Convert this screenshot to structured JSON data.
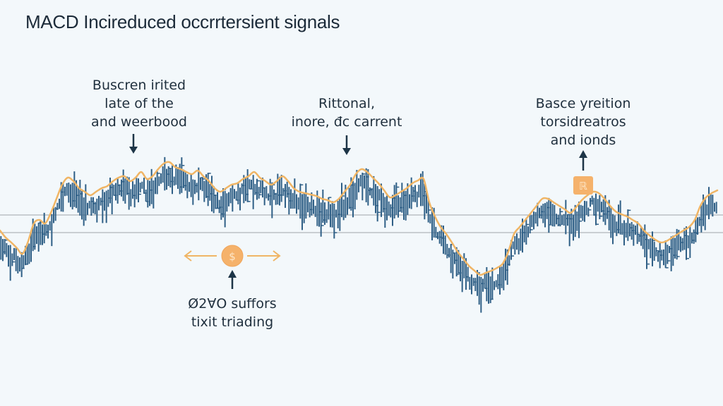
{
  "title": "MACD Incireduced occrrtersient signals",
  "colors": {
    "background": "#f3f8fb",
    "bars": "#2f5f86",
    "curve": "#f0b565",
    "arrow": "#1d3547",
    "marker": "#f5b26b",
    "baseline": "#8b8f94"
  },
  "annotations": [
    {
      "id": "a1",
      "lines": [
        "Buscren irited",
        "late of the",
        "and weerbood"
      ],
      "arrow": "down"
    },
    {
      "id": "a2",
      "lines": [
        "Rittonal,",
        "inore, đc carrent"
      ],
      "arrow": "down"
    },
    {
      "id": "a3",
      "lines": [
        "Basce yreition",
        "torsidreatros",
        "and ionds"
      ],
      "arrow": "up"
    },
    {
      "id": "a4",
      "lines": [
        "Ø2∀O suffors",
        "tixit triading"
      ],
      "arrow": "up"
    }
  ],
  "icons": {
    "coin": "coin-icon",
    "square_marker": "square-marker-icon",
    "left_arrow": "left-arrow-icon",
    "right_arrow": "right-arrow-icon"
  },
  "coin_glyph": "$",
  "marker_glyph": "ℝ",
  "chart_data": {
    "type": "line",
    "description_of_marks": "vertical price bars with an overlaid smoothed curve and two horizontal reference lines",
    "x": [
      0,
      8,
      16,
      24,
      32,
      40,
      48,
      56,
      64,
      72,
      80,
      88,
      96,
      104,
      112,
      120,
      128,
      136,
      144,
      152,
      160,
      168,
      176,
      184,
      192,
      200,
      208,
      216,
      224,
      232,
      240,
      248,
      256,
      264,
      272,
      280,
      288,
      296,
      304,
      312,
      320,
      328,
      336,
      344,
      352,
      360,
      368,
      376,
      384,
      392,
      400,
      408,
      416,
      424,
      432,
      440,
      448,
      456,
      464,
      472,
      480,
      488,
      496,
      504,
      512,
      520,
      528,
      536,
      544,
      552,
      560,
      568,
      576,
      584,
      592,
      600,
      608,
      616,
      624,
      632,
      640,
      648,
      656,
      664,
      672,
      680,
      688,
      696,
      704,
      712,
      720,
      728,
      736,
      744,
      752,
      760,
      768,
      776,
      784,
      792,
      800,
      808,
      816,
      824,
      832,
      840,
      848,
      856,
      864,
      872,
      880,
      888,
      896,
      904,
      912,
      920,
      928,
      936,
      944,
      952,
      960,
      968,
      976,
      984,
      992,
      1000,
      1008,
      1016
    ],
    "series": [
      {
        "values": [
          345,
          355,
          362,
          370,
          378,
          360,
          335,
          330,
          335,
          320,
          300,
          280,
          270,
          275,
          285,
          290,
          295,
          290,
          285,
          282,
          275,
          270,
          268,
          275,
          270,
          262,
          272,
          268,
          258,
          250,
          248,
          255,
          258,
          262,
          265,
          260,
          268,
          275,
          285,
          290,
          285,
          280,
          278,
          272,
          268,
          262,
          270,
          275,
          280,
          275,
          268,
          275,
          285,
          290,
          292,
          294,
          296,
          300,
          302,
          305,
          300,
          290,
          280,
          265,
          258,
          262,
          270,
          278,
          288,
          298,
          295,
          290,
          285,
          278,
          274,
          272,
          305,
          325,
          340,
          350,
          362,
          375,
          385,
          395,
          402,
          408,
          405,
          402,
          398,
          392,
          375,
          350,
          340,
          330,
          320,
          310,
          300,
          300,
          305,
          310,
          315,
          320,
          312,
          302,
          295,
          290,
          292,
          300,
          310,
          318,
          322,
          325,
          330,
          335,
          345,
          352,
          358,
          362,
          360,
          355,
          350,
          345,
          340,
          330,
          310,
          298,
          292,
          288
        ]
      }
    ],
    "reference_lines": [
      305,
      330
    ],
    "ylim": [
      200,
      450
    ],
    "xlabel": "",
    "ylabel": "",
    "grid": false
  }
}
